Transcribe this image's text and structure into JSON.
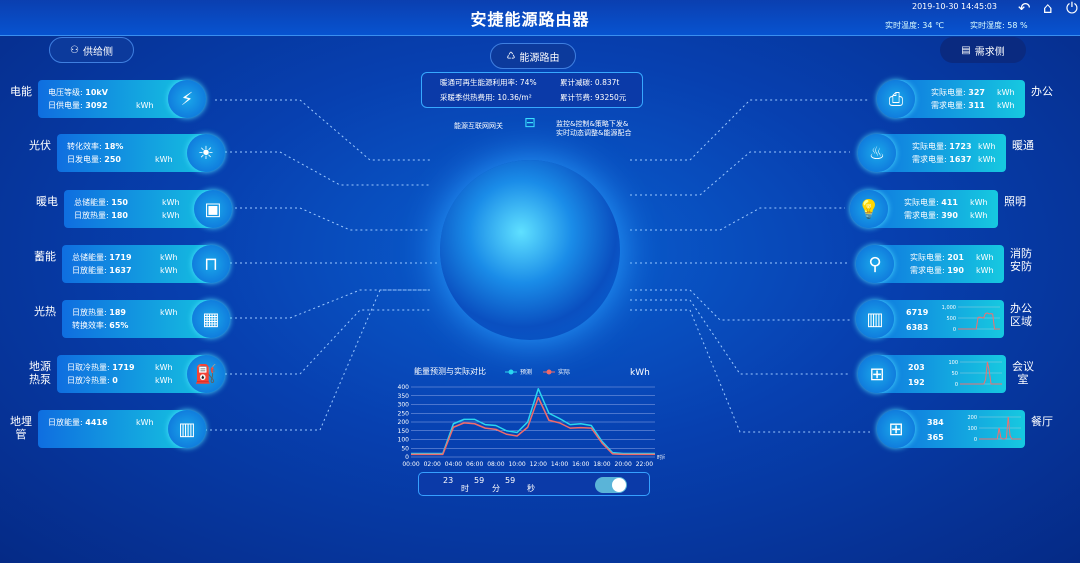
{
  "header": {
    "title": "安捷能源路由器",
    "datetime": "2019-10-30 14:45:03",
    "temperature": "实时温度: 34 ℃",
    "humidity": "实时湿度: 58 %",
    "icons": [
      "undo-icon",
      "home-icon",
      "power-icon"
    ]
  },
  "buttons": {
    "supply": "供给侧",
    "router": "能源路由",
    "demand": "需求侧"
  },
  "info": {
    "renewable": "暖通可再生能源利用率: 74%",
    "carbon": "累计减碳: 0.837t",
    "cost": "采暖季供热费用: 10.36/m²",
    "saving": "累计节费: 93250元"
  },
  "gateway": {
    "label": "能源互联网网关",
    "desc1": "监控&控制&策略下发&",
    "desc2": "实时动态调整&能源配合"
  },
  "supply": [
    {
      "name": "电能",
      "l1": "电压等级: ",
      "v1": "10kV",
      "u1": "",
      "l2": "日供电量: ",
      "v2": "3092",
      "u2": "kWh",
      "icon": "lightning-icon"
    },
    {
      "name": "光伏",
      "l1": "转化效率: ",
      "v1": "18%",
      "u1": "",
      "l2": "日发电量: ",
      "v2": "250",
      "u2": "kWh",
      "icon": "sun-icon"
    },
    {
      "name": "暖电",
      "l1": "总储能量: ",
      "v1": "150",
      "u1": "kWh",
      "l2": "日放热量: ",
      "v2": "180",
      "u2": "kWh",
      "icon": "meter-icon"
    },
    {
      "name": "蓄能",
      "l1": "总储能量: ",
      "v1": "1719",
      "u1": "kWh",
      "l2": "日放能量: ",
      "v2": "1637",
      "u2": "kWh",
      "icon": "pipe-icon"
    },
    {
      "name": "光热",
      "l1": "日放热量: ",
      "v1": "189",
      "u1": "kWh",
      "l2": "转换效率: ",
      "v2": "65%",
      "u2": "",
      "icon": "solar-panel-icon"
    },
    {
      "name": "地源热泵",
      "l1": "日取冷热量: ",
      "v1": "1719",
      "u1": "kWh",
      "l2": "日放冷热量: ",
      "v2": "0",
      "u2": "kWh",
      "icon": "heat-pump-icon"
    },
    {
      "name": "地埋管",
      "l1": "日放能量: ",
      "v1": "4416",
      "u1": "kWh",
      "l2": "",
      "v2": "",
      "u2": "",
      "icon": "ground-pipe-icon"
    }
  ],
  "demand": [
    {
      "name": "办公",
      "l1": "实际电量: ",
      "v1": "327",
      "u1": "kWh",
      "l2": "需求电量: ",
      "v2": "311",
      "u2": "kWh",
      "icon": "printer-icon"
    },
    {
      "name": "暖通",
      "l1": "实际电量: ",
      "v1": "1723",
      "u1": "kWh",
      "l2": "需求电量: ",
      "v2": "1637",
      "u2": "kWh",
      "icon": "hvac-icon"
    },
    {
      "name": "照明",
      "l1": "实际电量: ",
      "v1": "411",
      "u1": "kWh",
      "l2": "需求电量: ",
      "v2": "390",
      "u2": "kWh",
      "icon": "bulb-icon"
    },
    {
      "name": "消防安防",
      "l1": "实际电量: ",
      "v1": "201",
      "u1": "kWh",
      "l2": "需求电量: ",
      "v2": "190",
      "u2": "kWh",
      "icon": "extinguisher-icon"
    },
    {
      "name": "办公区域",
      "v1": "6719",
      "v2": "6383",
      "icon": "building-icon",
      "ylim": [
        0,
        1000
      ],
      "ticks": [
        "1,000",
        "500",
        "0"
      ],
      "series": [
        0,
        0,
        0,
        0,
        0,
        0,
        0,
        0,
        0,
        0,
        0,
        530,
        540,
        520,
        500,
        700,
        730,
        690,
        700,
        680,
        0,
        0,
        0,
        0
      ]
    },
    {
      "name": "会议室",
      "v1": "203",
      "v2": "192",
      "icon": "desk-icon",
      "ylim": [
        0,
        100
      ],
      "ticks": [
        "100",
        "50",
        "0"
      ],
      "series": [
        0,
        0,
        0,
        0,
        0,
        0,
        0,
        0,
        0,
        0,
        0,
        0,
        0,
        0,
        20,
        100,
        60,
        0,
        0,
        0,
        0,
        0,
        0,
        0
      ]
    },
    {
      "name": "餐厅",
      "v1": "384",
      "v2": "365",
      "icon": "desk-icon",
      "ylim": [
        0,
        200
      ],
      "ticks": [
        "200",
        "100",
        "0"
      ],
      "series": [
        0,
        0,
        0,
        0,
        0,
        0,
        0,
        0,
        0,
        0,
        0,
        100,
        10,
        0,
        0,
        10,
        200,
        30,
        0,
        0,
        0,
        0,
        0,
        0
      ]
    }
  ],
  "chart_data": {
    "type": "line",
    "title": "能量预测与实际对比",
    "unit": "kWh",
    "xlabel": "时间",
    "ylim": [
      0,
      400
    ],
    "yticks": [
      0,
      50,
      100,
      150,
      200,
      250,
      300,
      350,
      400
    ],
    "categories": [
      "00:00",
      "01:00",
      "02:00",
      "03:00",
      "04:00",
      "05:00",
      "06:00",
      "07:00",
      "08:00",
      "09:00",
      "10:00",
      "11:00",
      "12:00",
      "13:00",
      "14:00",
      "15:00",
      "16:00",
      "17:00",
      "18:00",
      "19:00",
      "20:00",
      "21:00",
      "22:00",
      "23:00"
    ],
    "xticklabels": [
      "00:00",
      "02:00",
      "04:00",
      "06:00",
      "08:00",
      "10:00",
      "12:00",
      "14:00",
      "16:00",
      "18:00",
      "20:00",
      "22:00"
    ],
    "series": [
      {
        "name": "预测",
        "color": "#2ad6f0",
        "values": [
          20,
          20,
          20,
          20,
          190,
          215,
          215,
          185,
          180,
          150,
          140,
          200,
          390,
          250,
          220,
          185,
          190,
          180,
          90,
          25,
          20,
          20,
          20,
          20
        ]
      },
      {
        "name": "实际",
        "color": "#f06a6a",
        "values": [
          15,
          15,
          15,
          15,
          170,
          195,
          190,
          165,
          158,
          130,
          120,
          170,
          340,
          210,
          195,
          165,
          168,
          165,
          80,
          18,
          15,
          15,
          15,
          15
        ]
      }
    ],
    "grid": true,
    "legend": "top"
  },
  "timer": {
    "h": "23",
    "hl": "时",
    "m": "59",
    "ml": "分",
    "s": "59",
    "sl": "秒",
    "toggle_on": true
  }
}
